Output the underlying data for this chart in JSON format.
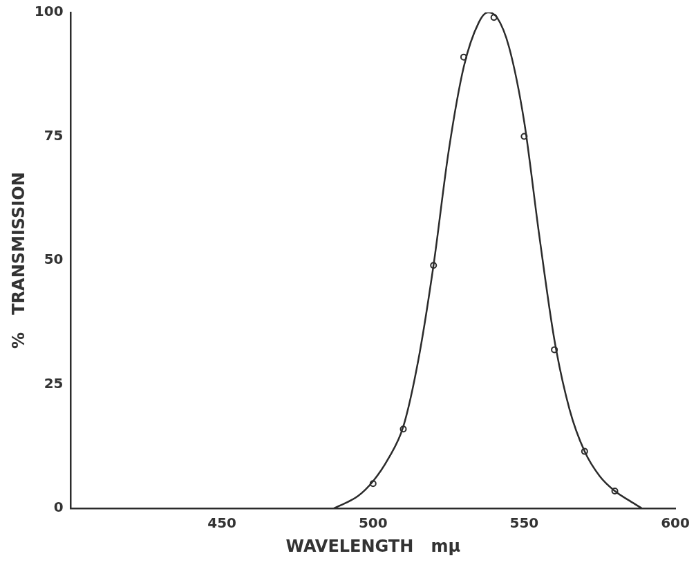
{
  "chart_data": {
    "type": "line",
    "xlabel": "WAVELENGTH   mμ",
    "ylabel": "%   TRANSMISSION",
    "xlim": [
      400,
      600
    ],
    "xticks": [
      450,
      500,
      550,
      600
    ],
    "ylim": [
      0,
      100
    ],
    "yticks": [
      0,
      25,
      50,
      75,
      100
    ],
    "grid": false,
    "legend": false,
    "series": [
      {
        "type": "line",
        "marker": "none",
        "line_style": "solid",
        "color": "#2b2b2b",
        "x": [
          487,
          495,
          500,
          505,
          510,
          515,
          520,
          525,
          530,
          535,
          538,
          541,
          545,
          550,
          555,
          560,
          565,
          570,
          575,
          580,
          585,
          589
        ],
        "values": [
          0,
          2.5,
          5.5,
          10,
          16.5,
          30,
          49,
          72,
          89,
          98,
          100,
          99,
          93,
          78,
          55,
          34,
          20,
          11.5,
          6.5,
          3.5,
          1.5,
          0
        ]
      },
      {
        "type": "scatter",
        "marker": "circle",
        "color": "#2b2b2b",
        "x": [
          500,
          510,
          520,
          530,
          540,
          550,
          560,
          570,
          580
        ],
        "values": [
          5,
          16,
          49,
          91,
          99,
          75,
          32,
          11.5,
          3.5
        ]
      }
    ]
  }
}
